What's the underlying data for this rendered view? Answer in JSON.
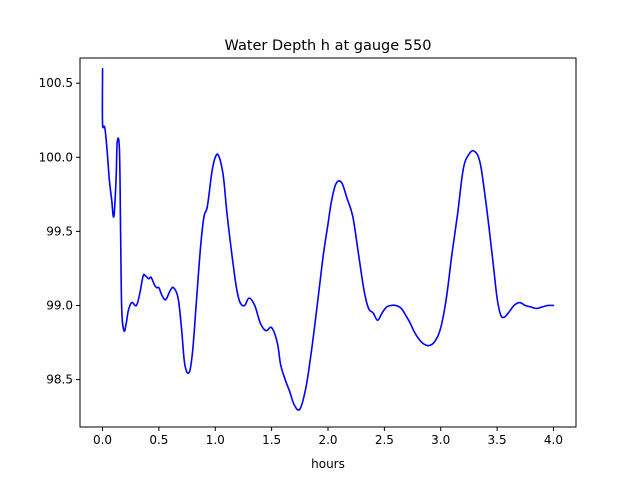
{
  "chart_data": {
    "type": "line",
    "title": "Water Depth h at gauge 550",
    "xlabel": "hours",
    "ylabel": "",
    "xlim": [
      -0.2,
      4.2
    ],
    "ylim": [
      98.18,
      100.67
    ],
    "xticks": [
      0.0,
      0.5,
      1.0,
      1.5,
      2.0,
      2.5,
      3.0,
      3.5,
      4.0
    ],
    "xtick_labels": [
      "0.0",
      "0.5",
      "1.0",
      "1.5",
      "2.0",
      "2.5",
      "3.0",
      "3.5",
      "4.0"
    ],
    "yticks": [
      98.5,
      99.0,
      99.5,
      100.0,
      100.5
    ],
    "ytick_labels": [
      "98.5",
      "99.0",
      "99.5",
      "100.0",
      "100.5"
    ],
    "grid": false,
    "series": [
      {
        "color": "#0000ff",
        "x": [
          0.0,
          0.0,
          0.0,
          0.02,
          0.04,
          0.06,
          0.08,
          0.1,
          0.12,
          0.13,
          0.15,
          0.16,
          0.17,
          0.19,
          0.21,
          0.23,
          0.26,
          0.3,
          0.33,
          0.36,
          0.38,
          0.41,
          0.43,
          0.46,
          0.48,
          0.5,
          0.52,
          0.55,
          0.57,
          0.6,
          0.63,
          0.67,
          0.7,
          0.73,
          0.77,
          0.8,
          0.83,
          0.87,
          0.9,
          0.93,
          0.97,
          1.0,
          1.03,
          1.07,
          1.1,
          1.13,
          1.16,
          1.19,
          1.22,
          1.26,
          1.3,
          1.35,
          1.4,
          1.45,
          1.5,
          1.55,
          1.58,
          1.62,
          1.66,
          1.7,
          1.75,
          1.8,
          1.84,
          1.88,
          1.92,
          1.96,
          2.0,
          2.03,
          2.07,
          2.12,
          2.17,
          2.22,
          2.27,
          2.32,
          2.36,
          2.4,
          2.44,
          2.48,
          2.52,
          2.56,
          2.6,
          2.65,
          2.7,
          2.73,
          2.76,
          2.8,
          2.85,
          2.9,
          2.95,
          3.0,
          3.05,
          3.1,
          3.15,
          3.2,
          3.25,
          3.3,
          3.35,
          3.4,
          3.44,
          3.47,
          3.5,
          3.53,
          3.56,
          3.6,
          3.65,
          3.7,
          3.75,
          3.8,
          3.85,
          3.9,
          3.95,
          4.0
        ],
        "y": [
          100.57,
          100.57,
          100.23,
          100.2,
          100.05,
          99.85,
          99.72,
          99.6,
          99.85,
          100.1,
          100.05,
          99.5,
          98.98,
          98.83,
          98.88,
          98.97,
          99.02,
          99.0,
          99.08,
          99.2,
          99.2,
          99.18,
          99.19,
          99.14,
          99.12,
          99.12,
          99.08,
          99.04,
          99.05,
          99.1,
          99.12,
          99.05,
          98.85,
          98.6,
          98.55,
          98.7,
          99.0,
          99.4,
          99.6,
          99.67,
          99.9,
          100.0,
          100.01,
          99.88,
          99.65,
          99.45,
          99.27,
          99.11,
          99.02,
          99.0,
          99.05,
          99.0,
          98.88,
          98.83,
          98.85,
          98.75,
          98.6,
          98.5,
          98.42,
          98.33,
          98.3,
          98.43,
          98.62,
          98.85,
          99.1,
          99.35,
          99.55,
          99.7,
          99.82,
          99.83,
          99.72,
          99.6,
          99.35,
          99.1,
          98.98,
          98.95,
          98.9,
          98.95,
          98.99,
          99.0,
          99.0,
          98.98,
          98.92,
          98.88,
          98.83,
          98.78,
          98.74,
          98.73,
          98.76,
          98.85,
          99.05,
          99.35,
          99.62,
          99.92,
          100.02,
          100.04,
          99.96,
          99.7,
          99.45,
          99.25,
          99.05,
          98.94,
          98.92,
          98.95,
          99.0,
          99.02,
          99.0,
          98.99,
          98.98,
          98.99,
          99.0,
          99.0
        ],
        "style": "line"
      }
    ]
  }
}
